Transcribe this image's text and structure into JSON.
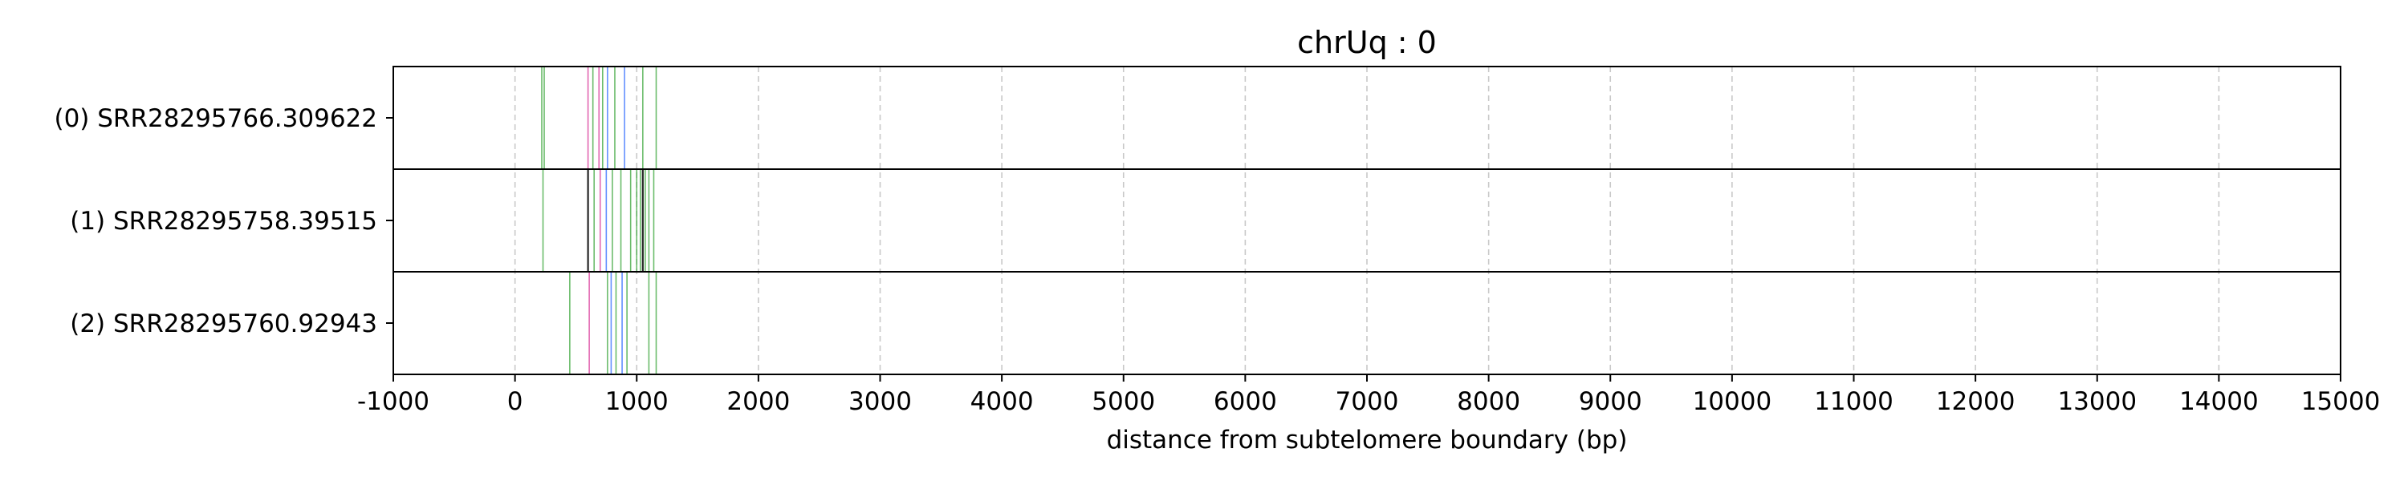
{
  "chart_data": {
    "type": "scatter",
    "title": "chrUq : 0",
    "xlabel": "distance from subtelomere boundary (bp)",
    "ylabel": "",
    "xlim": [
      -1000,
      15000
    ],
    "xticks": [
      -1000,
      0,
      1000,
      2000,
      3000,
      4000,
      5000,
      6000,
      7000,
      8000,
      9000,
      10000,
      11000,
      12000,
      13000,
      14000,
      15000
    ],
    "grid": "vertical dashed",
    "colors": {
      "green": "#2ca02c",
      "blue": "#1f5fff",
      "pink": "#d62790",
      "black": "#000000",
      "grid": "#c8c8c8"
    },
    "rows": [
      {
        "label": "(0) SRR28295766.309622",
        "marks": [
          {
            "x": 220,
            "color": "green"
          },
          {
            "x": 240,
            "color": "green"
          },
          {
            "x": 600,
            "color": "pink"
          },
          {
            "x": 640,
            "color": "green"
          },
          {
            "x": 690,
            "color": "pink"
          },
          {
            "x": 720,
            "color": "green"
          },
          {
            "x": 760,
            "color": "blue"
          },
          {
            "x": 820,
            "color": "green"
          },
          {
            "x": 900,
            "color": "blue"
          },
          {
            "x": 1050,
            "color": "green"
          },
          {
            "x": 1160,
            "color": "green"
          }
        ]
      },
      {
        "label": "(1) SRR28295758.39515",
        "marks": [
          {
            "x": 230,
            "color": "green"
          },
          {
            "x": 600,
            "color": "black"
          },
          {
            "x": 650,
            "color": "green"
          },
          {
            "x": 700,
            "color": "pink"
          },
          {
            "x": 750,
            "color": "blue"
          },
          {
            "x": 800,
            "color": "green"
          },
          {
            "x": 870,
            "color": "green"
          },
          {
            "x": 950,
            "color": "green"
          },
          {
            "x": 1000,
            "color": "green"
          },
          {
            "x": 1030,
            "color": "green"
          },
          {
            "x": 1050,
            "color": "black"
          },
          {
            "x": 1070,
            "color": "green"
          },
          {
            "x": 1100,
            "color": "green"
          },
          {
            "x": 1140,
            "color": "green"
          }
        ]
      },
      {
        "label": "(2) SRR28295760.92943",
        "marks": [
          {
            "x": 450,
            "color": "green"
          },
          {
            "x": 610,
            "color": "pink"
          },
          {
            "x": 760,
            "color": "green"
          },
          {
            "x": 790,
            "color": "blue"
          },
          {
            "x": 830,
            "color": "green"
          },
          {
            "x": 880,
            "color": "blue"
          },
          {
            "x": 920,
            "color": "green"
          },
          {
            "x": 1100,
            "color": "green"
          },
          {
            "x": 1160,
            "color": "green"
          }
        ]
      }
    ]
  }
}
